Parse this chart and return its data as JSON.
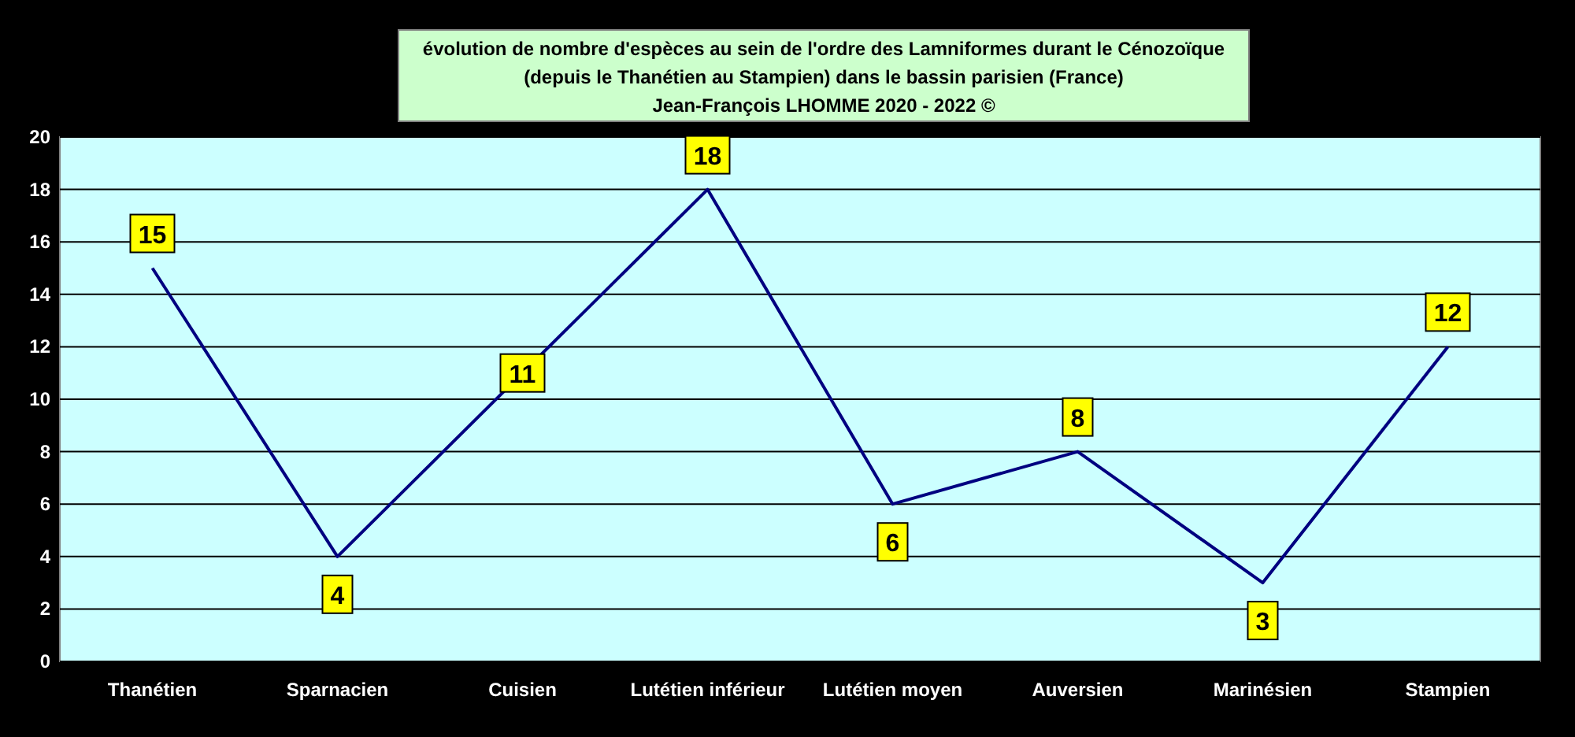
{
  "chart_data": {
    "type": "line",
    "title": "évolution de nombre d'espèces au sein de l'ordre des Lamniformes durant le Cénozoïque\n(depuis le Thanétien  au Stampien) dans le bassin parisien (France)",
    "subtitle": "Jean-François LHOMME  2020 - 2022  ©",
    "categories": [
      "Thanétien",
      "Sparnacien",
      "Cuisien",
      "Lutétien inférieur",
      "Lutétien moyen",
      "Auversien",
      "Marinésien",
      "Stampien"
    ],
    "series": [
      {
        "color": "#000080",
        "values": [
          15,
          4,
          11,
          18,
          6,
          8,
          3,
          12
        ]
      }
    ],
    "ylim": [
      0,
      20
    ],
    "yticks": [
      0,
      2,
      4,
      6,
      8,
      10,
      12,
      14,
      16,
      18,
      20
    ],
    "grid": "y",
    "data_labels": true,
    "marker": "none",
    "line_style": "solid"
  }
}
